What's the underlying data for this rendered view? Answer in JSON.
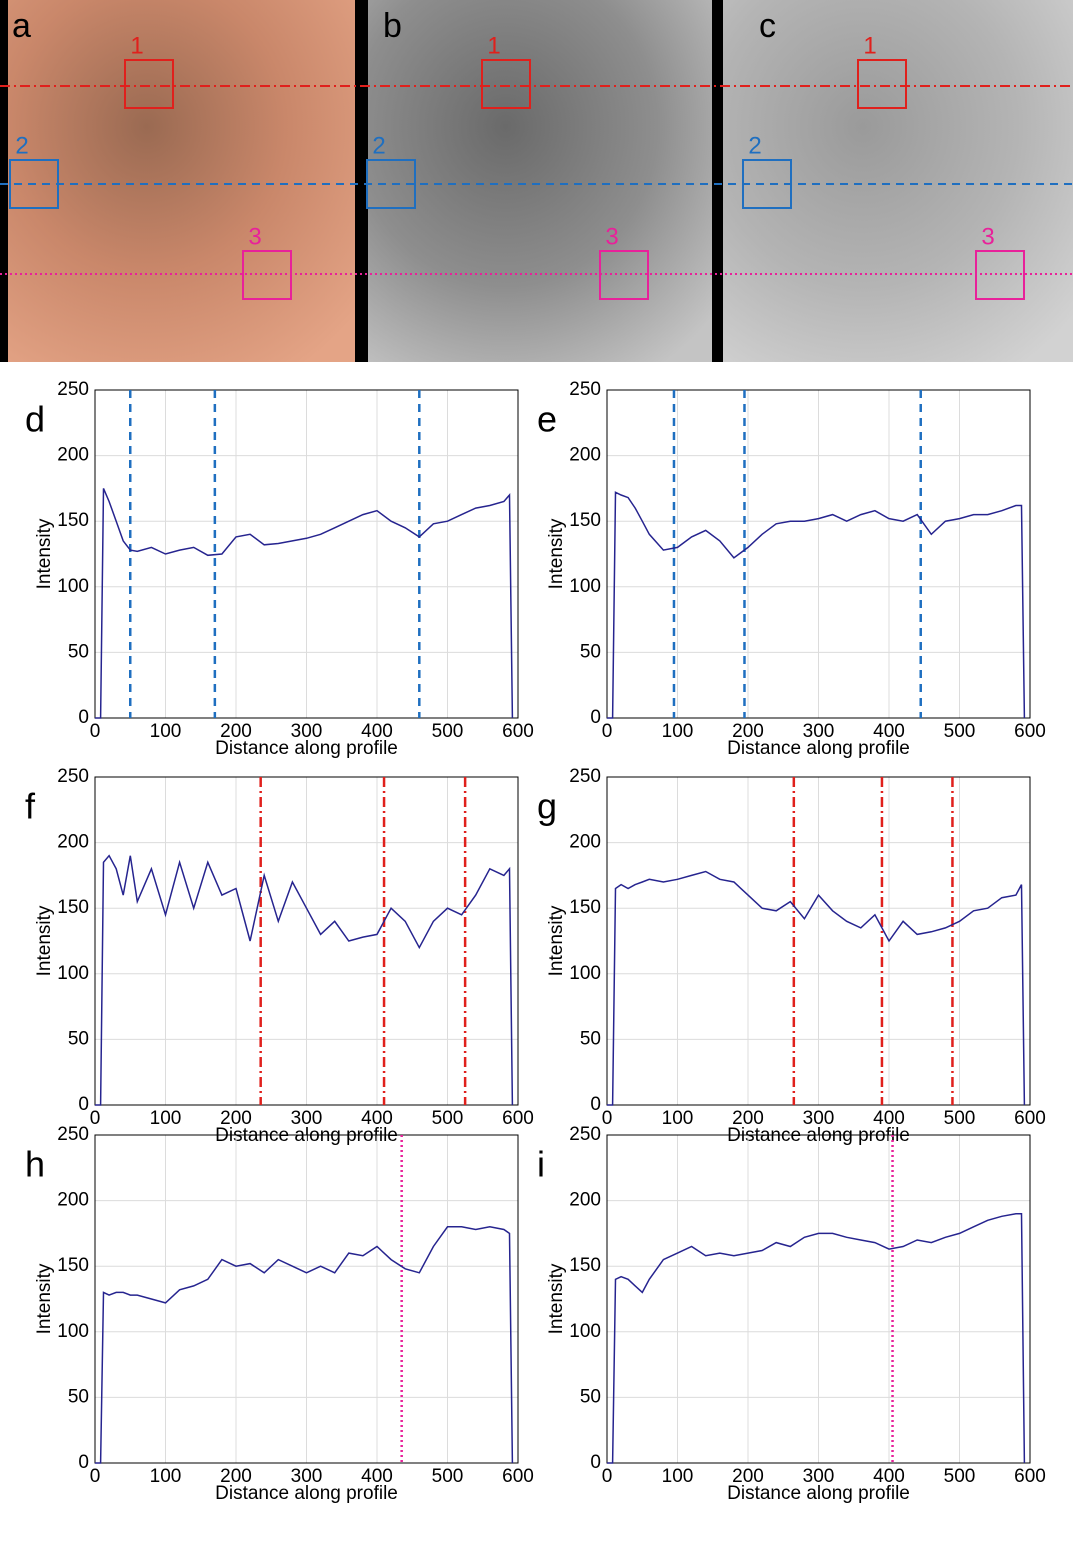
{
  "panels": [
    {
      "label": "a",
      "boxes": [
        "1",
        "2",
        "3"
      ]
    },
    {
      "label": "b",
      "boxes": [
        "1",
        "2",
        "3"
      ]
    },
    {
      "label": "c",
      "boxes": [
        "1",
        "2",
        "3"
      ]
    }
  ],
  "chart_data": [
    {
      "type": "line",
      "panel": "d",
      "xlabel": "Distance along profile",
      "ylabel": "Intensity",
      "xlim": [
        0,
        600
      ],
      "ylim": [
        0,
        250
      ],
      "xticks": [
        0,
        100,
        200,
        300,
        400,
        500,
        600
      ],
      "yticks": [
        0,
        50,
        100,
        150,
        200,
        250
      ],
      "grid": true,
      "x": [
        0,
        8,
        12,
        20,
        30,
        40,
        50,
        60,
        80,
        100,
        120,
        140,
        160,
        180,
        200,
        220,
        240,
        260,
        280,
        300,
        320,
        340,
        360,
        380,
        400,
        420,
        440,
        460,
        480,
        500,
        520,
        540,
        560,
        580,
        588,
        592
      ],
      "series": [
        {
          "color": "#26248f",
          "values": [
            0,
            0,
            175,
            165,
            150,
            135,
            128,
            127,
            130,
            125,
            128,
            130,
            124,
            125,
            138,
            140,
            132,
            133,
            135,
            137,
            140,
            145,
            150,
            155,
            158,
            150,
            145,
            138,
            148,
            150,
            155,
            160,
            162,
            165,
            170,
            0
          ]
        }
      ],
      "markers": {
        "x": [
          50,
          170,
          460
        ],
        "color": "#1f6fc0",
        "style": "dashed"
      }
    },
    {
      "type": "line",
      "panel": "e",
      "xlabel": "Distance along profile",
      "ylabel": "Intensity",
      "xlim": [
        0,
        600
      ],
      "ylim": [
        0,
        250
      ],
      "xticks": [
        0,
        100,
        200,
        300,
        400,
        500,
        600
      ],
      "yticks": [
        0,
        50,
        100,
        150,
        200,
        250
      ],
      "grid": true,
      "x": [
        0,
        8,
        12,
        20,
        30,
        40,
        50,
        60,
        80,
        100,
        120,
        140,
        160,
        180,
        200,
        220,
        240,
        260,
        280,
        300,
        320,
        340,
        360,
        380,
        400,
        420,
        440,
        460,
        480,
        500,
        520,
        540,
        560,
        580,
        588,
        592
      ],
      "series": [
        {
          "color": "#26248f",
          "values": [
            0,
            0,
            172,
            170,
            168,
            160,
            150,
            140,
            128,
            130,
            138,
            143,
            135,
            122,
            130,
            140,
            148,
            150,
            150,
            152,
            155,
            150,
            155,
            158,
            152,
            150,
            155,
            140,
            150,
            152,
            155,
            155,
            158,
            162,
            162,
            0
          ]
        }
      ],
      "markers": {
        "x": [
          95,
          195,
          445
        ],
        "color": "#1f6fc0",
        "style": "dashed"
      }
    },
    {
      "type": "line",
      "panel": "f",
      "xlabel": "Distance along profile",
      "ylabel": "Intensity",
      "xlim": [
        0,
        600
      ],
      "ylim": [
        0,
        250
      ],
      "xticks": [
        0,
        100,
        200,
        300,
        400,
        500,
        600
      ],
      "yticks": [
        0,
        50,
        100,
        150,
        200,
        250
      ],
      "grid": true,
      "x": [
        0,
        8,
        12,
        20,
        30,
        40,
        50,
        60,
        80,
        100,
        120,
        140,
        160,
        180,
        200,
        220,
        240,
        260,
        280,
        300,
        320,
        340,
        360,
        380,
        400,
        420,
        440,
        460,
        480,
        500,
        520,
        540,
        560,
        580,
        588,
        592
      ],
      "series": [
        {
          "color": "#26248f",
          "values": [
            0,
            0,
            185,
            190,
            180,
            160,
            190,
            155,
            180,
            145,
            185,
            150,
            185,
            160,
            165,
            125,
            175,
            140,
            170,
            150,
            130,
            140,
            125,
            128,
            130,
            150,
            140,
            120,
            140,
            150,
            145,
            160,
            180,
            175,
            180,
            0
          ]
        }
      ],
      "markers": {
        "x": [
          235,
          410,
          525
        ],
        "color": "#e0201c",
        "style": "dashdot"
      }
    },
    {
      "type": "line",
      "panel": "g",
      "xlabel": "Distance along profile",
      "ylabel": "Intensity",
      "xlim": [
        0,
        600
      ],
      "ylim": [
        0,
        250
      ],
      "xticks": [
        0,
        100,
        200,
        300,
        400,
        500,
        600
      ],
      "yticks": [
        0,
        50,
        100,
        150,
        200,
        250
      ],
      "grid": true,
      "x": [
        0,
        8,
        12,
        20,
        30,
        40,
        50,
        60,
        80,
        100,
        120,
        140,
        160,
        180,
        200,
        220,
        240,
        260,
        280,
        300,
        320,
        340,
        360,
        380,
        400,
        420,
        440,
        460,
        480,
        500,
        520,
        540,
        560,
        580,
        588,
        592
      ],
      "series": [
        {
          "color": "#26248f",
          "values": [
            0,
            0,
            165,
            168,
            165,
            168,
            170,
            172,
            170,
            172,
            175,
            178,
            172,
            170,
            160,
            150,
            148,
            155,
            142,
            160,
            148,
            140,
            135,
            145,
            125,
            140,
            130,
            132,
            135,
            140,
            148,
            150,
            158,
            160,
            168,
            0
          ]
        }
      ],
      "markers": {
        "x": [
          265,
          390,
          490
        ],
        "color": "#e0201c",
        "style": "dashdot"
      }
    },
    {
      "type": "line",
      "panel": "h",
      "xlabel": "Distance along profile",
      "ylabel": "Intensity",
      "xlim": [
        0,
        600
      ],
      "ylim": [
        0,
        250
      ],
      "xticks": [
        0,
        100,
        200,
        300,
        400,
        500,
        600
      ],
      "yticks": [
        0,
        50,
        100,
        150,
        200,
        250
      ],
      "grid": true,
      "x": [
        0,
        8,
        12,
        20,
        30,
        40,
        50,
        60,
        80,
        100,
        120,
        140,
        160,
        180,
        200,
        220,
        240,
        260,
        280,
        300,
        320,
        340,
        360,
        380,
        400,
        420,
        440,
        460,
        480,
        500,
        520,
        540,
        560,
        580,
        588,
        592
      ],
      "series": [
        {
          "color": "#26248f",
          "values": [
            0,
            0,
            130,
            128,
            130,
            130,
            128,
            128,
            125,
            122,
            132,
            135,
            140,
            155,
            150,
            152,
            145,
            155,
            150,
            145,
            150,
            145,
            160,
            158,
            165,
            155,
            148,
            145,
            165,
            180,
            180,
            178,
            180,
            178,
            175,
            0
          ]
        }
      ],
      "markers": {
        "x": [
          435
        ],
        "color": "#e8219a",
        "style": "dotted"
      }
    },
    {
      "type": "line",
      "panel": "i",
      "xlabel": "Distance along profile",
      "ylabel": "Intensity",
      "xlim": [
        0,
        600
      ],
      "ylim": [
        0,
        250
      ],
      "xticks": [
        0,
        100,
        200,
        300,
        400,
        500,
        600
      ],
      "yticks": [
        0,
        50,
        100,
        150,
        200,
        250
      ],
      "grid": true,
      "x": [
        0,
        8,
        12,
        20,
        30,
        40,
        50,
        60,
        80,
        100,
        120,
        140,
        160,
        180,
        200,
        220,
        240,
        260,
        280,
        300,
        320,
        340,
        360,
        380,
        400,
        420,
        440,
        460,
        480,
        500,
        520,
        540,
        560,
        580,
        588,
        592
      ],
      "series": [
        {
          "color": "#26248f",
          "values": [
            0,
            0,
            140,
            142,
            140,
            135,
            130,
            140,
            155,
            160,
            165,
            158,
            160,
            158,
            160,
            162,
            168,
            165,
            172,
            175,
            175,
            172,
            170,
            168,
            163,
            165,
            170,
            168,
            172,
            175,
            180,
            185,
            188,
            190,
            190,
            0
          ]
        }
      ],
      "markers": {
        "x": [
          405
        ],
        "color": "#e8219a",
        "style": "dotted"
      }
    }
  ]
}
